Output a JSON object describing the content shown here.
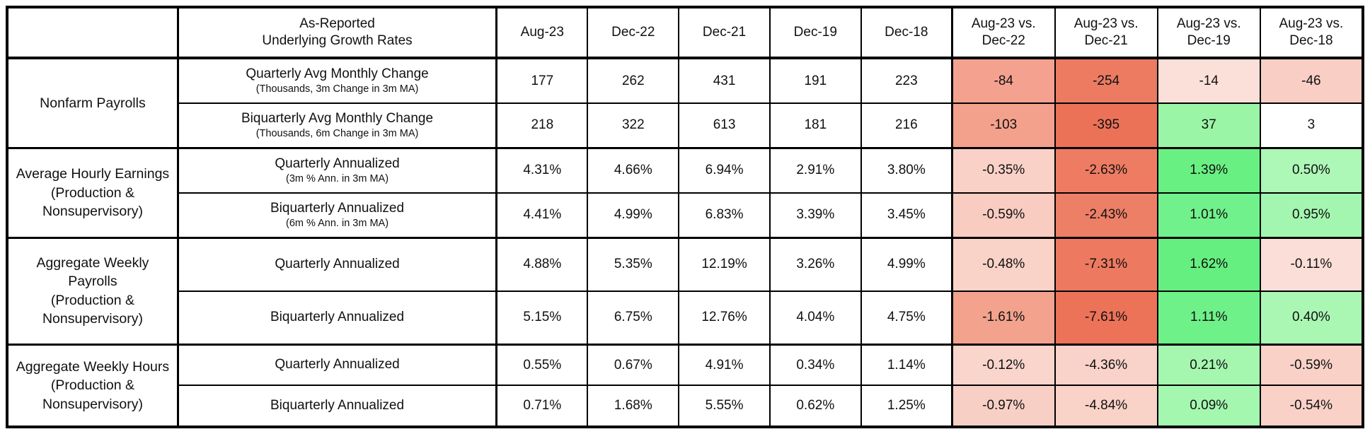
{
  "chart_data": {
    "type": "table",
    "corner_label": "",
    "descriptor_header": {
      "line1": "As-Reported",
      "line2": "Underlying Growth Rates"
    },
    "date_columns": [
      "Aug-23",
      "Dec-22",
      "Dec-21",
      "Dec-19",
      "Dec-18"
    ],
    "comparison_columns": [
      {
        "line1": "Aug-23 vs.",
        "line2": "Dec-22"
      },
      {
        "line1": "Aug-23 vs.",
        "line2": "Dec-21"
      },
      {
        "line1": "Aug-23 vs.",
        "line2": "Dec-19"
      },
      {
        "line1": "Aug-23 vs.",
        "line2": "Dec-18"
      }
    ],
    "status_colors": {
      "negative_strong": "#EC7258",
      "negative_light": "#F9D1C7",
      "positive_strong": "#66EF81",
      "positive_light": "#A5F7B0",
      "neutral": "#FFFFFF"
    },
    "groups": [
      {
        "category_lines": [
          "Nonfarm Payrolls"
        ],
        "rows": [
          {
            "label": "Quarterly Avg Monthly Change",
            "sublabel": "(Thousands, 3m Change in 3m MA)",
            "values": [
              "177",
              "262",
              "431",
              "191",
              "223"
            ],
            "comparisons": [
              {
                "text": "-84",
                "bg": "#F4A28F"
              },
              {
                "text": "-254",
                "bg": "#EC7B62"
              },
              {
                "text": "-14",
                "bg": "#FBE0D9"
              },
              {
                "text": "-46",
                "bg": "#F9CEC4"
              }
            ]
          },
          {
            "label": "Biquarterly Avg Monthly Change",
            "sublabel": "(Thousands, 6m Change in 3m MA)",
            "values": [
              "218",
              "322",
              "613",
              "181",
              "216"
            ],
            "comparisons": [
              {
                "text": "-103",
                "bg": "#F3A18D"
              },
              {
                "text": "-395",
                "bg": "#EB7157"
              },
              {
                "text": "37",
                "bg": "#9AF6A6"
              },
              {
                "text": "3",
                "bg": "#FFFFFF"
              }
            ]
          }
        ]
      },
      {
        "category_lines": [
          "Average Hourly Earnings",
          "(Production & Nonsupervisory)"
        ],
        "rows": [
          {
            "label": "Quarterly Annualized",
            "sublabel": "(3m % Ann. in 3m MA)",
            "values": [
              "4.31%",
              "4.66%",
              "6.94%",
              "2.91%",
              "3.80%"
            ],
            "comparisons": [
              {
                "text": "-0.35%",
                "bg": "#F9D1C7"
              },
              {
                "text": "-2.63%",
                "bg": "#EE7C63"
              },
              {
                "text": "1.39%",
                "bg": "#69F083"
              },
              {
                "text": "0.50%",
                "bg": "#ADF7B7"
              }
            ]
          },
          {
            "label": "Biquarterly Annualized",
            "sublabel": "(6m % Ann. in 3m MA)",
            "values": [
              "4.41%",
              "4.99%",
              "6.83%",
              "3.39%",
              "3.45%"
            ],
            "comparisons": [
              {
                "text": "-0.59%",
                "bg": "#F8CCC1"
              },
              {
                "text": "-2.43%",
                "bg": "#EE7F67"
              },
              {
                "text": "1.01%",
                "bg": "#71F18B"
              },
              {
                "text": "0.95%",
                "bg": "#A3F6AF"
              }
            ]
          }
        ]
      },
      {
        "category_lines": [
          "Aggregate Weekly Payrolls",
          "(Production & Nonsupervisory)"
        ],
        "rows": [
          {
            "label": "Quarterly Annualized",
            "sublabel": "",
            "values": [
              "4.88%",
              "5.35%",
              "12.19%",
              "3.26%",
              "4.99%"
            ],
            "comparisons": [
              {
                "text": "-0.48%",
                "bg": "#F9D2C8"
              },
              {
                "text": "-7.31%",
                "bg": "#ED7A60"
              },
              {
                "text": "1.62%",
                "bg": "#66EF81"
              },
              {
                "text": "-0.11%",
                "bg": "#FBDED7"
              }
            ]
          },
          {
            "label": "Biquarterly Annualized",
            "sublabel": "",
            "values": [
              "5.15%",
              "6.75%",
              "12.76%",
              "4.04%",
              "4.75%"
            ],
            "comparisons": [
              {
                "text": "-1.61%",
                "bg": "#F2A28D"
              },
              {
                "text": "-7.61%",
                "bg": "#EC7258"
              },
              {
                "text": "1.11%",
                "bg": "#6FF189"
              },
              {
                "text": "0.40%",
                "bg": "#AAF7B4"
              }
            ]
          }
        ]
      },
      {
        "category_lines": [
          "Aggregate Weekly Hours",
          "(Production & Nonsupervisory)"
        ],
        "rows": [
          {
            "label": "Quarterly Annualized",
            "sublabel": "",
            "values": [
              "0.55%",
              "0.67%",
              "4.91%",
              "0.34%",
              "1.14%"
            ],
            "comparisons": [
              {
                "text": "-0.12%",
                "bg": "#F9D5CC"
              },
              {
                "text": "-4.36%",
                "bg": "#F9D2C9"
              },
              {
                "text": "0.21%",
                "bg": "#A5F7B0"
              },
              {
                "text": "-0.59%",
                "bg": "#F9D1C6"
              }
            ]
          },
          {
            "label": "Biquarterly Annualized",
            "sublabel": "",
            "values": [
              "0.71%",
              "1.68%",
              "5.55%",
              "0.62%",
              "1.25%"
            ],
            "comparisons": [
              {
                "text": "-0.97%",
                "bg": "#F8CFC4"
              },
              {
                "text": "-4.84%",
                "bg": "#F9D2C8"
              },
              {
                "text": "0.09%",
                "bg": "#A4F7AF"
              },
              {
                "text": "-0.54%",
                "bg": "#F9D1C7"
              }
            ]
          }
        ]
      }
    ]
  }
}
